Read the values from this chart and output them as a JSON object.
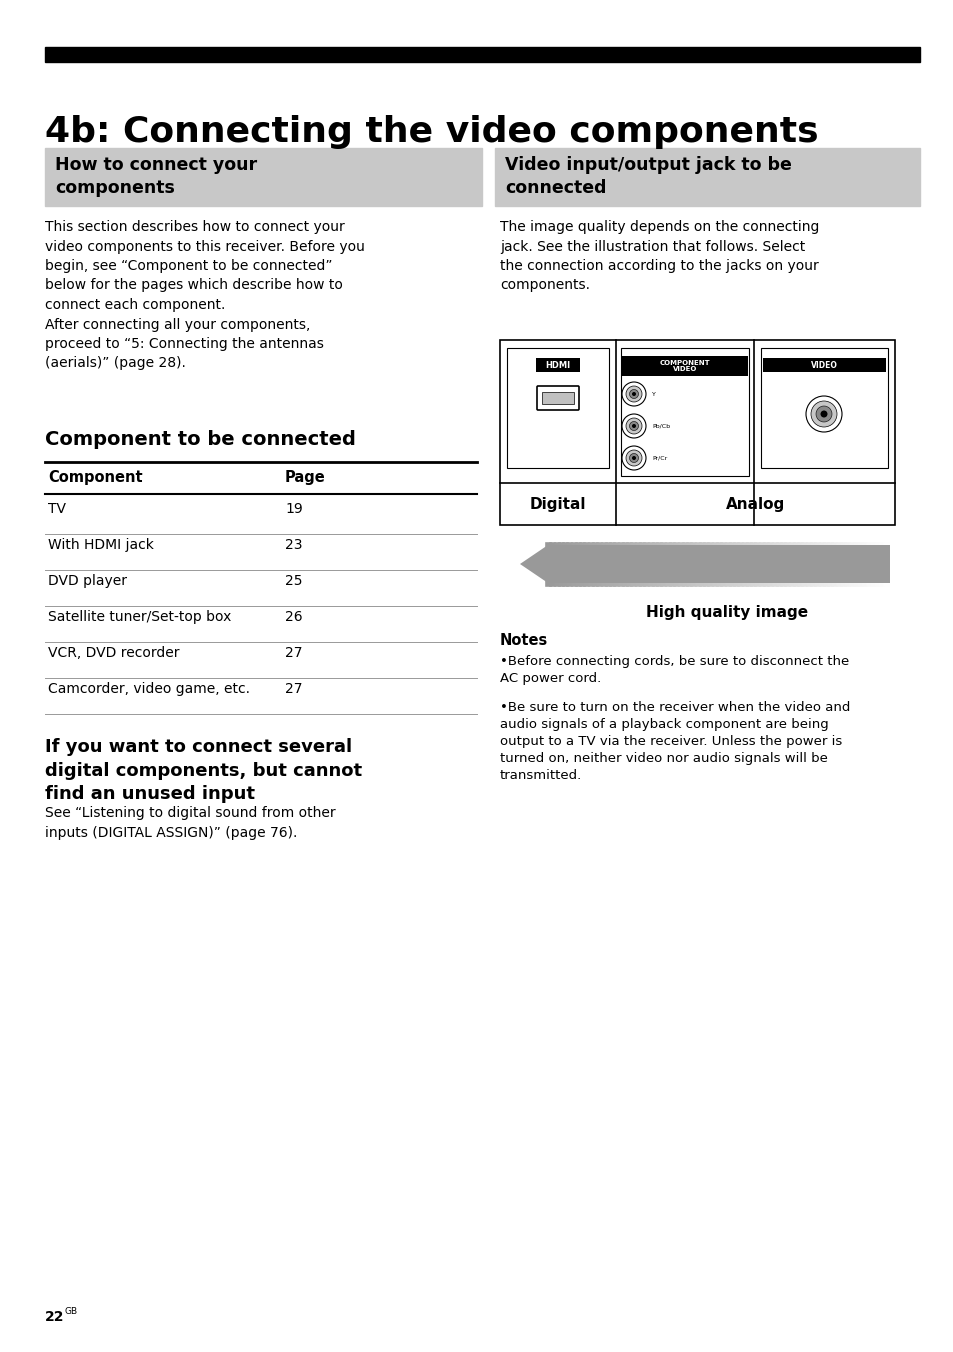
{
  "page_title": "4b: Connecting the video components",
  "left_header": "How to connect your\ncomponents",
  "right_header": "Video input/output jack to be\nconnected",
  "left_body1": "This section describes how to connect your\nvideo components to this receiver. Before you\nbegin, see “Component to be connected”\nbelow for the pages which describe how to\nconnect each component.\nAfter connecting all your components,\nproceed to “5: Connecting the antennas\n(aerials)” (page 28).",
  "section_title": "Component to be connected",
  "table_col1_header": "Component",
  "table_col2_header": "Page",
  "table_rows": [
    [
      "TV",
      "19"
    ],
    [
      "With HDMI jack",
      "23"
    ],
    [
      "DVD player",
      "25"
    ],
    [
      "Satellite tuner/Set-top box",
      "26"
    ],
    [
      "VCR, DVD recorder",
      "27"
    ],
    [
      "Camcorder, video game, etc.",
      "27"
    ]
  ],
  "section2_title": "If you want to connect several\ndigital components, but cannot\nfind an unused input",
  "section2_body": "See “Listening to digital sound from other\ninputs (DIGITAL ASSIGN)” (page 76).",
  "right_body1": "The image quality depends on the connecting\njack. See the illustration that follows. Select\nthe connection according to the jacks on your\ncomponents.",
  "digital_label": "Digital",
  "analog_label": "Analog",
  "hq_label": "High quality image",
  "notes_title": "Notes",
  "note1": "Before connecting cords, be sure to disconnect the\nAC power cord.",
  "note2": "Be sure to turn on the receiver when the video and\naudio signals of a playback component are being\noutput to a TV via the receiver. Unless the power is\nturned on, neither video nor audio signals will be\ntransmitted.",
  "page_number": "22",
  "page_suffix": "GB",
  "bg_color": "#ffffff",
  "header_bar_color": "#000000",
  "section_header_bg": "#c8c8c8",
  "text_color": "#000000"
}
